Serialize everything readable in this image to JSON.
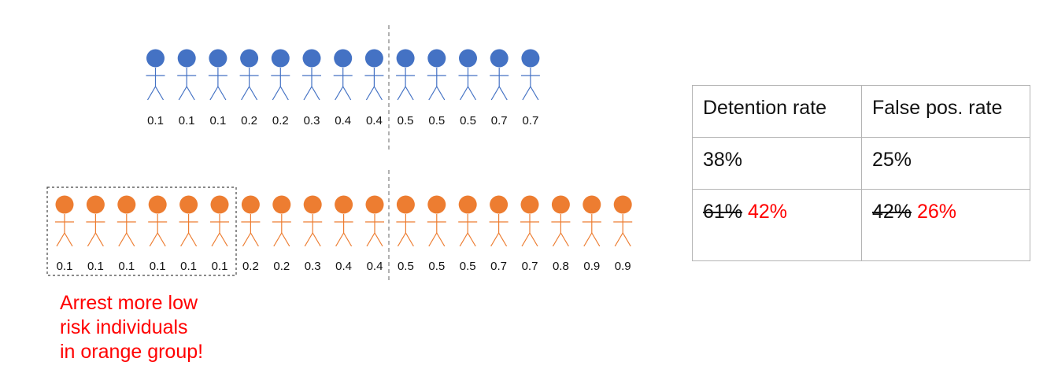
{
  "colors": {
    "blue_group": "#4472c4",
    "orange_group": "#ed7d31",
    "highlight_text": "#ff0000",
    "threshold_line": "#999999",
    "selection_box": "#444444"
  },
  "threshold": 0.5,
  "groups": [
    {
      "name": "blue",
      "scores": [
        "0.1",
        "0.1",
        "0.1",
        "0.2",
        "0.2",
        "0.3",
        "0.4",
        "0.4",
        "0.5",
        "0.5",
        "0.5",
        "0.7",
        "0.7"
      ]
    },
    {
      "name": "orange",
      "scores": [
        "0.1",
        "0.1",
        "0.1",
        "0.1",
        "0.1",
        "0.1",
        "0.2",
        "0.2",
        "0.3",
        "0.4",
        "0.4",
        "0.5",
        "0.5",
        "0.5",
        "0.7",
        "0.7",
        "0.8",
        "0.9",
        "0.9"
      ],
      "boxed_count": 6
    }
  ],
  "note": {
    "lines": [
      "Arrest more low",
      "risk individuals",
      "in orange group!"
    ]
  },
  "metrics_table": {
    "headers": [
      "Detention rate",
      "False pos. rate"
    ],
    "row1": [
      "38%",
      "25%"
    ],
    "row2": {
      "old": [
        "61%",
        "42%"
      ],
      "new": [
        "42%",
        "26%"
      ]
    }
  }
}
